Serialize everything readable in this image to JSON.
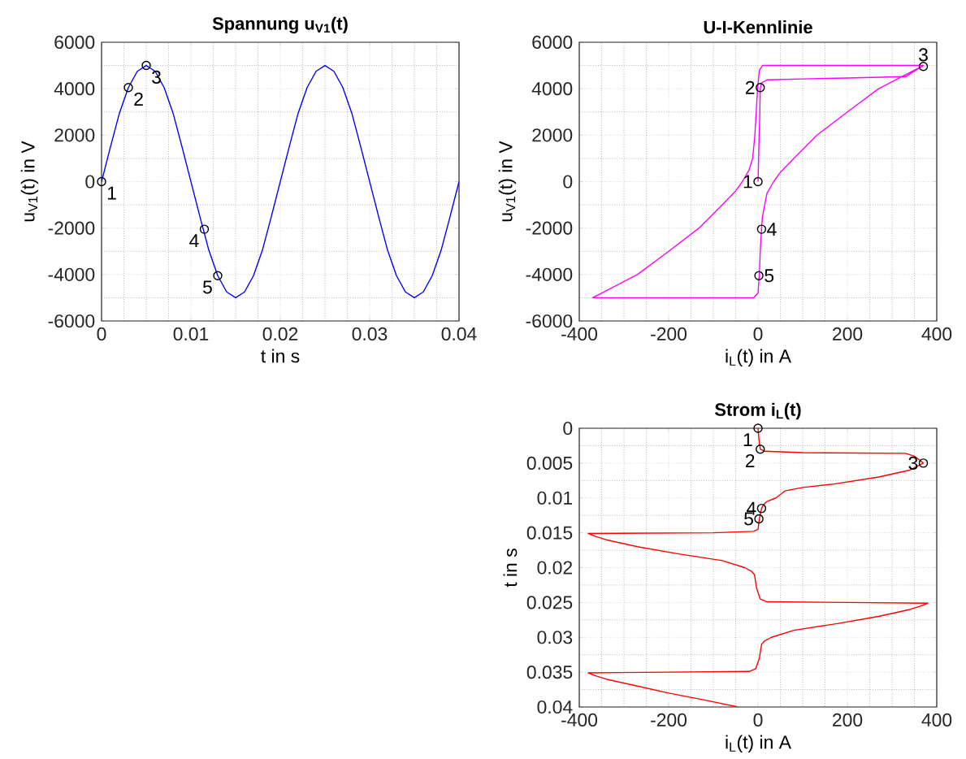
{
  "chart_data": [
    {
      "type": "line",
      "title": "Spannung u$_{V1}$(t)",
      "xlabel": "t in s",
      "ylabel": "u$_{V1}$(t) in V",
      "xlim": [
        0,
        0.04
      ],
      "ylim": [
        -6000,
        6000
      ],
      "xticks": [
        0,
        0.01,
        0.02,
        0.03,
        0.04
      ],
      "yticks": [
        -6000,
        -4000,
        -2000,
        0,
        2000,
        4000,
        6000
      ],
      "grid": true,
      "series": [
        {
          "color": "#0000ff",
          "x": [
            0,
            0.001,
            0.002,
            0.003,
            0.004,
            0.005,
            0.006,
            0.007,
            0.008,
            0.009,
            0.01,
            0.011,
            0.012,
            0.013,
            0.014,
            0.015,
            0.016,
            0.017,
            0.018,
            0.019,
            0.02,
            0.021,
            0.022,
            0.023,
            0.024,
            0.025,
            0.026,
            0.027,
            0.028,
            0.029,
            0.03,
            0.031,
            0.032,
            0.033,
            0.034,
            0.035,
            0.036,
            0.037,
            0.038,
            0.039,
            0.04
          ],
          "values": [
            0,
            1500,
            2950,
            4050,
            4750,
            5000,
            4750,
            4050,
            2950,
            1500,
            0,
            -1500,
            -2950,
            -4050,
            -4750,
            -5000,
            -4750,
            -4050,
            -2950,
            -1500,
            0,
            1500,
            2950,
            4050,
            4750,
            5000,
            4750,
            4050,
            2950,
            1500,
            0,
            -1500,
            -2950,
            -4050,
            -4750,
            -5000,
            -4750,
            -4050,
            -2950,
            -1500,
            0
          ]
        },
        {
          "type": "scatter",
          "color": "#000000",
          "marker": "circle",
          "x": [
            0,
            0.003,
            0.005,
            0.0115,
            0.013
          ],
          "values": [
            0,
            4050,
            5000,
            -2050,
            -4050
          ]
        }
      ],
      "annotations": [
        {
          "text": "1",
          "x": 0,
          "y": 0
        },
        {
          "text": "2",
          "x": 0.003,
          "y": 4050
        },
        {
          "text": "3",
          "x": 0.005,
          "y": 5000
        },
        {
          "text": "4",
          "x": 0.0115,
          "y": -2050
        },
        {
          "text": "5",
          "x": 0.013,
          "y": -4050
        }
      ]
    },
    {
      "type": "line",
      "title": "U-I-Kennlinie",
      "xlabel": "i$_{L}$(t) in A",
      "ylabel": "u$_{V1}$(t) in V",
      "xlim": [
        -400,
        400
      ],
      "ylim": [
        -6000,
        6000
      ],
      "xticks": [
        -400,
        -200,
        0,
        200,
        400
      ],
      "yticks": [
        -6000,
        -4000,
        -2000,
        0,
        2000,
        4000,
        6000
      ],
      "grid": true,
      "series": [
        {
          "color": "#ff00ff",
          "x": [
            0,
            2,
            4,
            5,
            8,
            20,
            100,
            200,
            330,
            370,
            270,
            200,
            132,
            80,
            50,
            35,
            20,
            15,
            10,
            8,
            5,
            3,
            0,
            -10,
            -370,
            -270,
            -200,
            -132,
            -80,
            -50,
            -35,
            -20,
            -12,
            -7,
            -4,
            -1,
            3,
            10,
            370
          ],
          "values": [
            0,
            1500,
            3000,
            4000,
            4250,
            4380,
            4420,
            4460,
            4520,
            5000,
            4000,
            3000,
            2000,
            1000,
            400,
            0,
            -500,
            -1000,
            -1500,
            -2000,
            -3000,
            -4000,
            -4800,
            -5000,
            -5000,
            -4000,
            -3000,
            -2000,
            -1000,
            -400,
            0,
            500,
            1000,
            2000,
            3000,
            4000,
            4800,
            5000,
            5000
          ]
        },
        {
          "type": "scatter",
          "color": "#000000",
          "marker": "circle",
          "x": [
            0,
            5,
            370,
            8,
            2
          ],
          "values": [
            0,
            4050,
            4960,
            -2050,
            -4050
          ]
        }
      ],
      "annotations": [
        {
          "text": "1",
          "x": 0,
          "y": 0
        },
        {
          "text": "2",
          "x": 5,
          "y": 4050
        },
        {
          "text": "3",
          "x": 370,
          "y": 4960
        },
        {
          "text": "4",
          "x": 8,
          "y": -2050
        },
        {
          "text": "5",
          "x": 2,
          "y": -4050
        }
      ]
    },
    {
      "type": "line",
      "title": "Strom i$_{L}$(t)",
      "xlabel": "i$_{L}$(t) in A",
      "ylabel": "t in s",
      "xlim": [
        -400,
        400
      ],
      "ylim": [
        0.04,
        0
      ],
      "xticks": [
        -400,
        -200,
        0,
        200,
        400
      ],
      "yticks": [
        0,
        0.005,
        0.01,
        0.015,
        0.02,
        0.025,
        0.03,
        0.035,
        0.04
      ],
      "grid": true,
      "series": [
        {
          "color": "#ff0000",
          "x": [
            0,
            2,
            5,
            15,
            100,
            330,
            350,
            370,
            340,
            270,
            170,
            100,
            60,
            40,
            20,
            12,
            8,
            3,
            0,
            -10,
            -100,
            -380,
            -365,
            -340,
            -270,
            -180,
            -80,
            -30,
            -15,
            -8,
            -3,
            5,
            20,
            200,
            380,
            365,
            340,
            270,
            180,
            80,
            30,
            15,
            8,
            3,
            -5,
            -20,
            -200,
            -380,
            -365,
            -340,
            -270,
            -200,
            -120,
            -45
          ],
          "values": [
            0,
            0.0015,
            0.003,
            0.0033,
            0.0035,
            0.0036,
            0.004,
            0.005,
            0.006,
            0.007,
            0.008,
            0.0085,
            0.009,
            0.01,
            0.0105,
            0.011,
            0.0115,
            0.013,
            0.0145,
            0.0148,
            0.015,
            0.0151,
            0.0155,
            0.016,
            0.017,
            0.018,
            0.019,
            0.02,
            0.0205,
            0.021,
            0.023,
            0.0245,
            0.0249,
            0.025,
            0.0251,
            0.0255,
            0.026,
            0.027,
            0.028,
            0.029,
            0.03,
            0.0305,
            0.031,
            0.033,
            0.0345,
            0.0349,
            0.035,
            0.0351,
            0.0355,
            0.036,
            0.037,
            0.038,
            0.039,
            0.04
          ]
        },
        {
          "type": "scatter",
          "color": "#000000",
          "marker": "circle",
          "x": [
            0,
            5,
            370,
            8,
            2
          ],
          "values": [
            0,
            0.003,
            0.005,
            0.0115,
            0.013
          ]
        }
      ],
      "annotations": [
        {
          "text": "1",
          "x": 0,
          "y": 0
        },
        {
          "text": "2",
          "x": 5,
          "y": 0.003
        },
        {
          "text": "3",
          "x": 370,
          "y": 0.005
        },
        {
          "text": "4",
          "x": 8,
          "y": 0.0115
        },
        {
          "text": "5",
          "x": 2,
          "y": 0.013
        }
      ]
    }
  ]
}
